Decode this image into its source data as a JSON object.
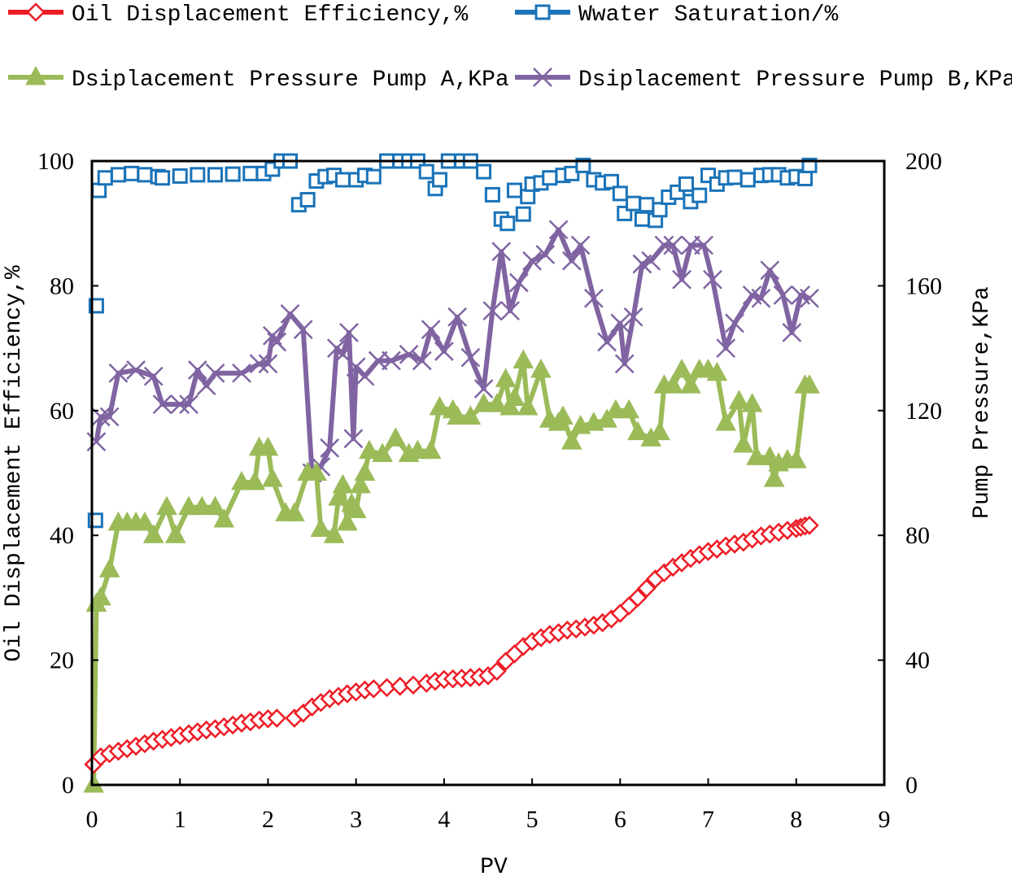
{
  "chart_data": {
    "type": "line",
    "title": "",
    "xlabel": "PV",
    "ylabel": "Oil Displacement Efficiency,%",
    "y2label": "Pump Pressure,KPa",
    "xlim": [
      0,
      9
    ],
    "ylim": [
      0,
      100
    ],
    "y2lim": [
      0,
      200
    ],
    "xticks": [
      "0",
      "1",
      "2",
      "3",
      "4",
      "5",
      "6",
      "7",
      "8",
      "9"
    ],
    "yticks": [
      "0",
      "20",
      "40",
      "60",
      "80",
      "100"
    ],
    "y2ticks": [
      "0",
      "40",
      "80",
      "120",
      "160",
      "200"
    ],
    "grid": false,
    "legend_placement": "top",
    "series": [
      {
        "name": "Oil Displacement Efficiency,%",
        "axis": "left",
        "color": "#ee1c25",
        "marker": "diamond",
        "x": [
          0.02,
          0.1,
          0.2,
          0.3,
          0.4,
          0.5,
          0.6,
          0.7,
          0.8,
          0.9,
          1.0,
          1.1,
          1.2,
          1.3,
          1.4,
          1.5,
          1.6,
          1.7,
          1.8,
          1.9,
          2.0,
          2.1,
          2.3,
          2.4,
          2.5,
          2.6,
          2.7,
          2.8,
          2.9,
          3.0,
          3.1,
          3.2,
          3.35,
          3.5,
          3.65,
          3.8,
          3.9,
          4.0,
          4.1,
          4.2,
          4.3,
          4.4,
          4.5,
          4.6,
          4.7,
          4.8,
          4.9,
          5.0,
          5.1,
          5.2,
          5.3,
          5.4,
          5.5,
          5.6,
          5.7,
          5.8,
          5.9,
          6.0,
          6.1,
          6.2,
          6.3,
          6.4,
          6.5,
          6.6,
          6.7,
          6.8,
          6.9,
          7.0,
          7.1,
          7.2,
          7.3,
          7.4,
          7.5,
          7.6,
          7.7,
          7.8,
          7.9,
          8.0,
          8.05,
          8.1,
          8.15
        ],
        "y": [
          3.3,
          4.5,
          5.0,
          5.4,
          5.8,
          6.2,
          6.6,
          7.0,
          7.3,
          7.6,
          7.9,
          8.2,
          8.5,
          8.8,
          9.0,
          9.3,
          9.6,
          9.9,
          10.1,
          10.4,
          10.6,
          10.7,
          10.7,
          11.5,
          12.5,
          13.2,
          13.8,
          14.2,
          14.6,
          14.9,
          15.2,
          15.4,
          15.6,
          15.8,
          16.0,
          16.3,
          16.6,
          16.9,
          17.0,
          17.1,
          17.2,
          17.3,
          17.5,
          18.2,
          19.8,
          21.0,
          22.2,
          23.0,
          23.6,
          24.1,
          24.4,
          24.8,
          25.0,
          25.3,
          25.6,
          26.0,
          26.6,
          27.5,
          28.7,
          30.0,
          31.5,
          33.0,
          34.0,
          34.9,
          35.6,
          36.3,
          36.9,
          37.4,
          37.8,
          38.3,
          38.6,
          38.9,
          39.4,
          39.9,
          40.2,
          40.5,
          40.8,
          41.1,
          41.3,
          41.5,
          41.6
        ]
      },
      {
        "name": "Wwater Saturation/%",
        "axis": "left",
        "color": "#1a73b8",
        "marker": "square",
        "x": [
          0.04,
          0.05,
          0.08,
          0.15,
          0.3,
          0.45,
          0.6,
          0.75,
          0.8,
          1.0,
          1.2,
          1.4,
          1.6,
          1.8,
          1.95,
          2.05,
          2.15,
          2.25,
          2.35,
          2.45,
          2.55,
          2.65,
          2.75,
          2.85,
          3.0,
          3.1,
          3.2,
          3.35,
          3.5,
          3.6,
          3.7,
          3.8,
          3.9,
          3.95,
          4.05,
          4.2,
          4.3,
          4.45,
          4.55,
          4.65,
          4.72,
          4.8,
          4.9,
          4.95,
          5.0,
          5.1,
          5.2,
          5.35,
          5.45,
          5.58,
          5.7,
          5.8,
          5.9,
          6.0,
          6.05,
          6.15,
          6.25,
          6.3,
          6.4,
          6.45,
          6.55,
          6.65,
          6.75,
          6.8,
          6.9,
          7.0,
          7.1,
          7.2,
          7.3,
          7.45,
          7.6,
          7.7,
          7.8,
          7.9,
          8.0,
          8.1,
          8.15
        ],
        "y": [
          42.4,
          76.8,
          95.3,
          97.3,
          97.8,
          98.0,
          97.8,
          97.5,
          97.3,
          97.6,
          97.8,
          97.8,
          97.9,
          98.0,
          98.0,
          98.7,
          100,
          100,
          93.0,
          93.8,
          96.8,
          97.5,
          97.7,
          97.0,
          97.0,
          97.7,
          97.5,
          100,
          100,
          100,
          100,
          98.3,
          95.6,
          97.0,
          100,
          100,
          100,
          98.3,
          94.6,
          90.7,
          90.0,
          95.3,
          91.5,
          94.3,
          96.3,
          96.5,
          97.3,
          97.7,
          98.0,
          99.3,
          97.0,
          96.5,
          96.7,
          94.8,
          91.6,
          93.2,
          90.7,
          93.0,
          90.5,
          92.2,
          94.2,
          95.0,
          96.3,
          93.5,
          94.5,
          97.7,
          96.3,
          97.3,
          97.4,
          97.0,
          97.7,
          97.8,
          97.8,
          97.3,
          97.5,
          97.2,
          99.3
        ]
      },
      {
        "name": "Dsiplacement Pressure Pump A,KPa",
        "axis": "right",
        "color": "#9bbb59",
        "marker": "triangle",
        "x": [
          0.02,
          0.05,
          0.1,
          0.2,
          0.3,
          0.4,
          0.5,
          0.6,
          0.7,
          0.85,
          0.95,
          1.1,
          1.25,
          1.4,
          1.5,
          1.7,
          1.85,
          1.9,
          2.0,
          2.05,
          2.2,
          2.3,
          2.45,
          2.55,
          2.6,
          2.75,
          2.8,
          2.85,
          2.9,
          2.95,
          3.0,
          3.05,
          3.1,
          3.15,
          3.3,
          3.45,
          3.6,
          3.7,
          3.85,
          3.95,
          4.1,
          4.15,
          4.3,
          4.45,
          4.6,
          4.7,
          4.75,
          4.8,
          4.9,
          4.95,
          5.1,
          5.2,
          5.3,
          5.35,
          5.45,
          5.55,
          5.7,
          5.85,
          5.95,
          6.1,
          6.2,
          6.35,
          6.45,
          6.5,
          6.6,
          6.7,
          6.8,
          6.9,
          7.0,
          7.1,
          7.2,
          7.35,
          7.4,
          7.5,
          7.55,
          7.7,
          7.75,
          7.8,
          7.9,
          8.0,
          8.1,
          8.15
        ],
        "y": [
          0,
          58,
          60,
          69,
          84,
          84,
          84,
          84,
          80,
          89,
          80,
          89,
          89,
          89,
          85,
          97,
          97,
          108,
          108,
          98,
          87,
          87,
          100,
          100,
          82,
          80,
          92,
          96,
          84,
          90,
          88,
          96,
          100,
          107,
          106,
          111,
          106,
          107,
          107,
          121,
          120,
          118,
          118,
          122,
          122,
          130,
          121,
          124,
          136,
          121,
          133,
          117,
          116,
          118,
          110,
          115,
          116,
          117,
          120,
          120,
          113,
          111,
          113,
          128,
          128,
          133,
          128,
          133,
          133,
          132,
          116,
          123,
          109,
          122,
          105,
          105,
          98,
          103,
          104,
          104,
          128,
          128
        ]
      },
      {
        "name": "Dsiplacement Pressure Pump B,KPa",
        "axis": "right",
        "color": "#8064a2",
        "marker": "x",
        "x": [
          0.05,
          0.1,
          0.2,
          0.3,
          0.5,
          0.7,
          0.8,
          1.0,
          1.1,
          1.2,
          1.3,
          1.4,
          1.7,
          1.9,
          2.0,
          2.05,
          2.1,
          2.25,
          2.4,
          2.5,
          2.6,
          2.7,
          2.78,
          2.85,
          2.92,
          2.97,
          3.0,
          3.1,
          3.25,
          3.4,
          3.6,
          3.75,
          3.85,
          4.0,
          4.15,
          4.3,
          4.45,
          4.55,
          4.65,
          4.75,
          4.85,
          5.0,
          5.15,
          5.3,
          5.45,
          5.55,
          5.7,
          5.85,
          6.0,
          6.05,
          6.15,
          6.25,
          6.35,
          6.5,
          6.6,
          6.7,
          6.8,
          6.95,
          7.05,
          7.2,
          7.3,
          7.5,
          7.6,
          7.7,
          7.85,
          7.95,
          8.05,
          8.15
        ],
        "y": [
          110,
          118,
          118,
          132,
          133,
          131,
          122,
          122,
          122,
          133,
          128,
          132,
          132,
          135,
          135,
          144,
          142,
          151,
          146,
          100,
          102,
          108,
          140,
          138,
          145,
          111,
          134,
          131,
          136,
          136,
          138,
          136,
          146,
          139,
          150,
          137,
          127,
          152,
          171,
          152,
          161,
          168,
          170,
          178,
          168,
          173,
          156,
          142,
          148,
          135,
          150,
          167,
          168,
          173,
          173,
          162,
          173,
          173,
          162,
          140,
          148,
          157,
          156,
          165,
          157,
          145,
          157,
          156
        ]
      }
    ]
  }
}
